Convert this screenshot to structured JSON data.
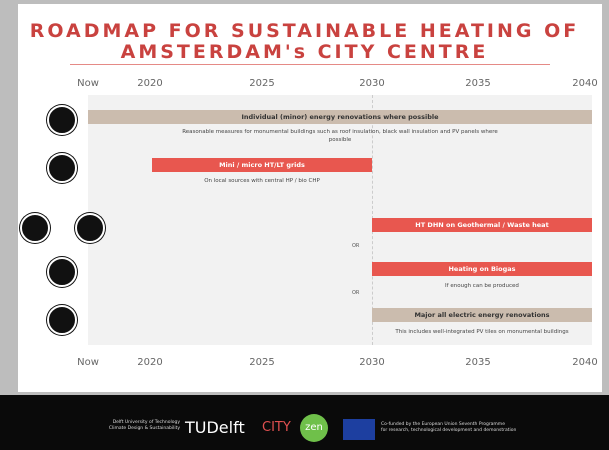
{
  "header": {
    "title_line1": "ROADMAP FOR SUSTAINABLE HEATING OF",
    "title_line2": "AMSTERDAM's CITY CENTRE"
  },
  "timeline": {
    "labels": [
      "Now",
      "2020",
      "2025",
      "2030",
      "2035",
      "2040"
    ]
  },
  "measures": [
    {
      "label": "Individual (minor) energy renovations where possible",
      "description": "Reasonable measures for monumental buildings such as roof insulation, black wall insulation and PV panels where possible"
    },
    {
      "label": "Mini / micro HT/LT grids",
      "description": "On local sources with central HP / bio CHP"
    },
    {
      "label": "HT DHN on Geothermal / Waste heat"
    },
    {
      "label": "Heating on Biogas",
      "description": "If enough can be produced"
    },
    {
      "label": "Major all electric energy renovations",
      "description": "This includes well-integrated PV tiles on monumental buildings"
    }
  ],
  "connectors": [
    "OR",
    "OR"
  ],
  "footer": {
    "university_line1": "Delft University of Technology",
    "university_line2": "Climate Design & Sustainability",
    "logo_tu": "TUDelft",
    "logo_city": "CITY",
    "logo_zen": "zen",
    "eu_line1": "Co-funded by the European Union Seventh Programme",
    "eu_line2": "for research, technological development and demonstration"
  }
}
